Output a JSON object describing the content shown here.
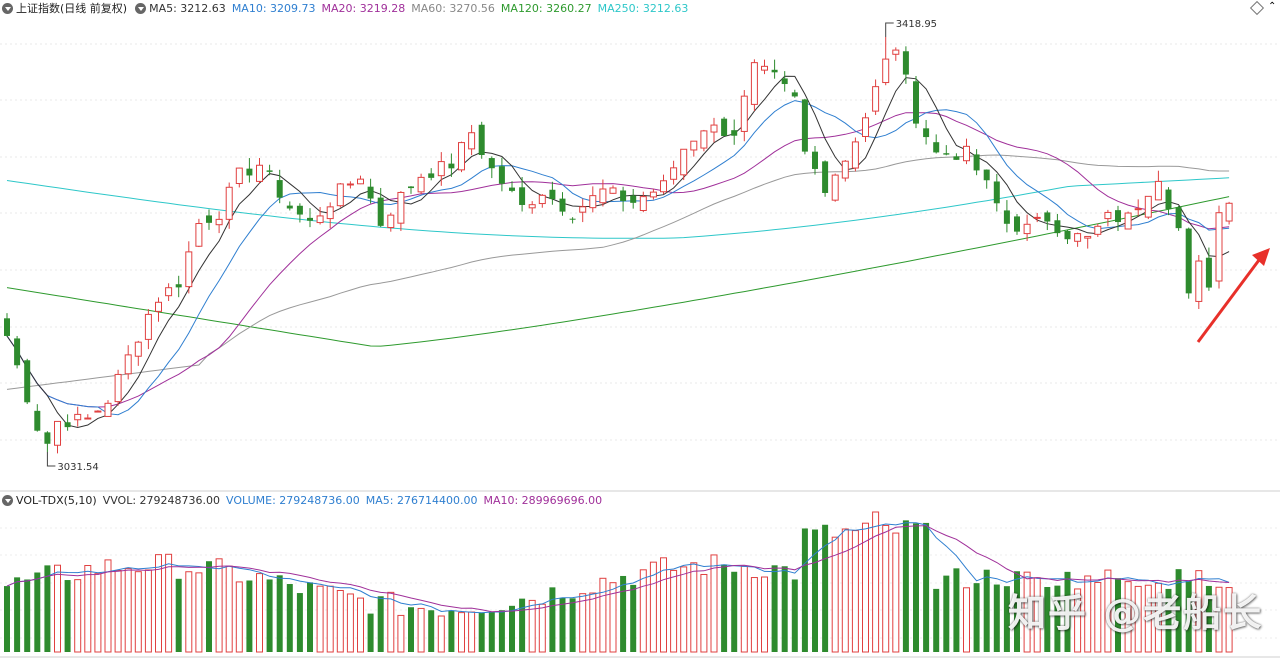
{
  "main_panel": {
    "title": "上证指数(日线 前复权)",
    "indicators": [
      {
        "label": "MA5: 3212.63",
        "color": "#333333"
      },
      {
        "label": "MA10: 3209.73",
        "color": "#2f7fd0"
      },
      {
        "label": "MA20: 3219.28",
        "color": "#a0309a"
      },
      {
        "label": "MA60: 3270.56",
        "color": "#888888"
      },
      {
        "label": "MA120: 3260.27",
        "color": "#2e9a2e"
      },
      {
        "label": "MA250: 3212.63",
        "color": "#2ec7c9"
      }
    ],
    "high_label": "3418.95",
    "low_label": "3031.54"
  },
  "volume_panel": {
    "title": "VOL-TDX(5,10)",
    "indicators": [
      {
        "label": "VVOL: 279248736.00",
        "color": "#333333"
      },
      {
        "label": "VOLUME: 279248736.00",
        "color": "#2f7fd0"
      },
      {
        "label": "MA5: 276714400.00",
        "color": "#2f7fd0"
      },
      {
        "label": "MA10: 289969696.00",
        "color": "#a0309a"
      }
    ]
  },
  "watermark": "知乎 @老船长",
  "colors": {
    "up": "#e04040",
    "down": "#2e8b2e",
    "arrow": "#e8302a"
  },
  "chart_data": {
    "type": "candlestick",
    "title": "上证指数(日线 前复权)",
    "price_range_visible": [
      3031.54,
      3418.95
    ],
    "high": 3418.95,
    "low": 3031.54,
    "moving_averages": {
      "MA5": 3212.63,
      "MA10": 3209.73,
      "MA20": 3219.28,
      "MA60": 3270.56,
      "MA120": 3260.27,
      "MA250": 3212.63
    },
    "volume": {
      "VVOL": 279248736.0,
      "VOLUME": 279248736.0,
      "MA5": 276714400.0,
      "MA10": 289969696.0
    }
  }
}
